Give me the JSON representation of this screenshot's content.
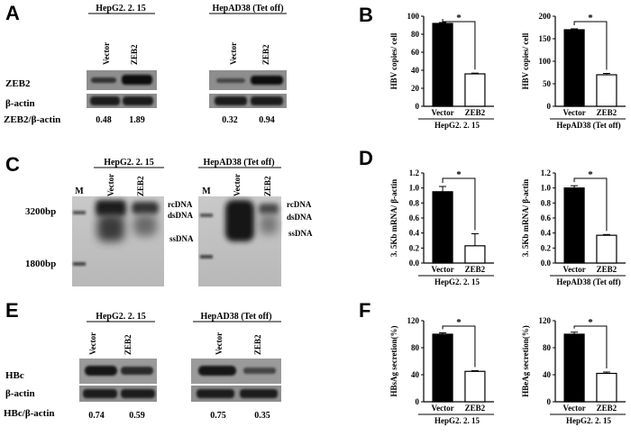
{
  "panels": {
    "A": {
      "label": "A",
      "groups": [
        "HepG2. 2. 15",
        "HepAD38 (Tet off)"
      ],
      "lanes": [
        "Vector",
        "ZEB2"
      ],
      "rows": [
        "ZEB2",
        "β-actin"
      ],
      "ratio_label": "ZEB2/β-actin",
      "ratios": [
        "0.48",
        "1.89",
        "0.32",
        "0.94"
      ]
    },
    "B": {
      "label": "B"
    },
    "C": {
      "label": "C",
      "groups": [
        "HepG2. 2. 15",
        "HepAD38 (Tet off)"
      ],
      "marker": "M",
      "lanes": [
        "Vector",
        "ZEB2"
      ],
      "bands": [
        "rcDNA",
        "dsDNA",
        "ssDNA"
      ],
      "sizes": [
        "3200bp",
        "1800bp"
      ]
    },
    "D": {
      "label": "D"
    },
    "E": {
      "label": "E",
      "groups": [
        "HepG2. 2. 15",
        "HepAD38 (Tet off)"
      ],
      "lanes": [
        "Vector",
        "ZEB2"
      ],
      "rows": [
        "HBc",
        "β-actin"
      ],
      "ratio_label": "HBc/β-actin",
      "ratios": [
        "0.74",
        "0.59",
        "0.75",
        "0.35"
      ]
    },
    "F": {
      "label": "F"
    }
  },
  "chart_data": [
    {
      "id": "B1",
      "type": "bar",
      "categories": [
        "Vector",
        "ZEB2"
      ],
      "values": [
        92,
        36
      ],
      "errors": [
        1,
        0.8
      ],
      "ylabel": "HBV copies/ cell",
      "xlabel": "HepG2. 2. 15",
      "ylim": [
        0,
        100
      ],
      "ticks": [
        "0",
        "20",
        "40",
        "60",
        "80",
        "100"
      ],
      "significance": "*"
    },
    {
      "id": "B2",
      "type": "bar",
      "categories": [
        "Vector",
        "ZEB2"
      ],
      "values": [
        170,
        70
      ],
      "errors": [
        2,
        3
      ],
      "ylabel": "HBV copies/ cell",
      "xlabel": "HepAD38 (Tet off)",
      "ylim": [
        0,
        200
      ],
      "ticks": [
        "0",
        "50",
        "100",
        "150",
        "200"
      ],
      "significance": "*"
    },
    {
      "id": "D1",
      "type": "bar",
      "categories": [
        "Vector",
        "ZEB2"
      ],
      "values": [
        0.95,
        0.23
      ],
      "errors": [
        0.07,
        0.16
      ],
      "ylabel": "3. 5Kb mRNA/ β-actin",
      "xlabel": "HepG2. 2. 15",
      "ylim": [
        0,
        1.2
      ],
      "ticks": [
        "0.0",
        "0.2",
        "0.4",
        "0.6",
        "0.8",
        "1.0",
        "1.2"
      ],
      "significance": "*"
    },
    {
      "id": "D2",
      "type": "bar",
      "categories": [
        "Vector",
        "ZEB2"
      ],
      "values": [
        1.0,
        0.37
      ],
      "errors": [
        0.03,
        0.01
      ],
      "ylabel": "3. 5Kb mRNA/ β-actin",
      "xlabel": "HepAD38 (Tet off)",
      "ylim": [
        0,
        1.2
      ],
      "ticks": [
        "0.0",
        "0.2",
        "0.4",
        "0.6",
        "0.8",
        "1.0",
        "1.2"
      ],
      "significance": "*"
    },
    {
      "id": "F1",
      "type": "bar",
      "categories": [
        "Vector",
        "ZEB2"
      ],
      "values": [
        100,
        45
      ],
      "errors": [
        2,
        1
      ],
      "ylabel": "HBsAg secretion(%)",
      "xlabel": "HepG2. 2. 15",
      "ylim": [
        0,
        120
      ],
      "ticks": [
        "0",
        "40",
        "80",
        "120"
      ],
      "significance": "*"
    },
    {
      "id": "F2",
      "type": "bar",
      "categories": [
        "Vector",
        "ZEB2"
      ],
      "values": [
        100,
        42
      ],
      "errors": [
        3,
        2
      ],
      "ylabel": "HBeAg secretion(%)",
      "xlabel": "HepG2. 2. 15",
      "ylim": [
        0,
        120
      ],
      "ticks": [
        "0",
        "40",
        "80",
        "120"
      ],
      "significance": "*"
    }
  ]
}
